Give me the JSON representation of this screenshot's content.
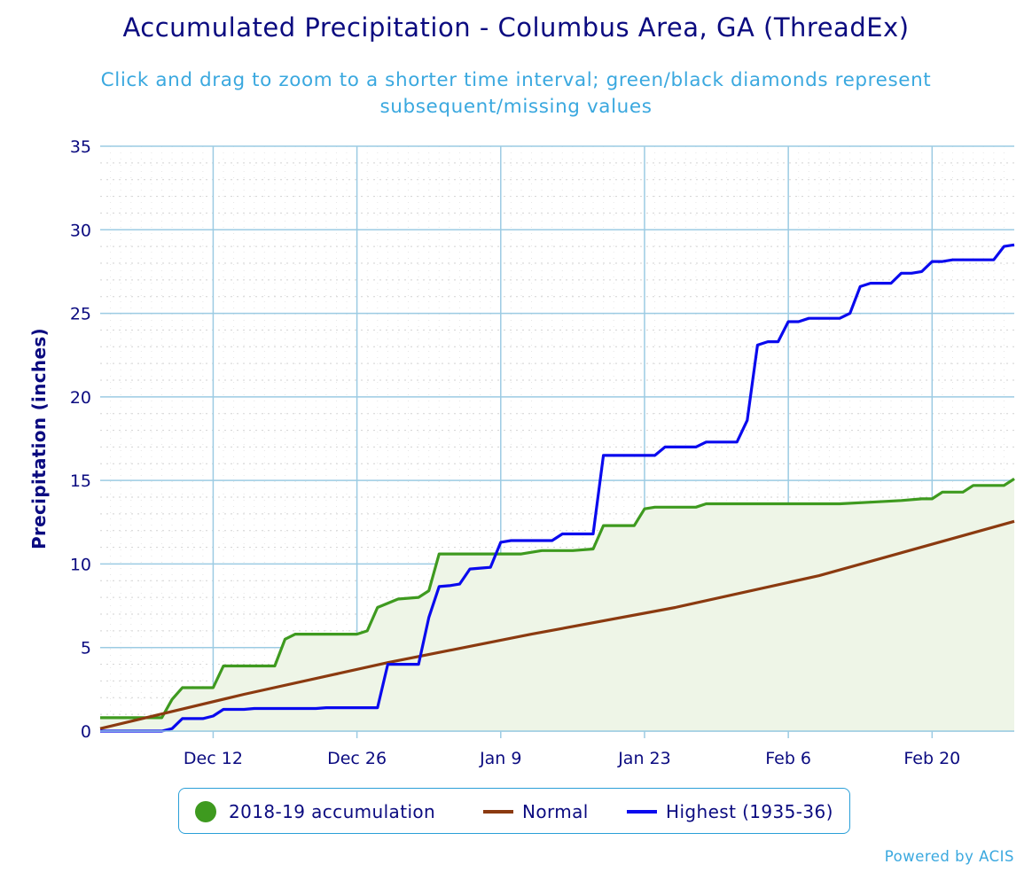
{
  "chart_data": {
    "type": "line",
    "title": "Accumulated Precipitation - Columbus Area, GA (ThreadEx)",
    "subtitle": "Click and drag to zoom to a shorter time interval; green/black diamonds represent subsequent/missing values",
    "ylabel": "Precipitation (inches)",
    "xlabel": "",
    "ylim": [
      0,
      35
    ],
    "yticks": [
      0,
      5,
      10,
      15,
      20,
      25,
      30,
      35
    ],
    "xlim": [
      "2018-12-01",
      "2019-02-28"
    ],
    "xticks": [
      {
        "date": "2018-12-12",
        "label": "Dec 12"
      },
      {
        "date": "2018-12-26",
        "label": "Dec 26"
      },
      {
        "date": "2019-01-09",
        "label": "Jan 9"
      },
      {
        "date": "2019-01-23",
        "label": "Jan 23"
      },
      {
        "date": "2019-02-06",
        "label": "Feb 6"
      },
      {
        "date": "2019-02-20",
        "label": "Feb 20"
      }
    ],
    "grid": true,
    "legend_position": "bottom",
    "series": [
      {
        "name": "2018-19 accumulation",
        "color": "#3e9a1f",
        "fill": "#eef5e7",
        "style": "area",
        "points": [
          [
            "2018-12-01",
            0.8
          ],
          [
            "2018-12-07",
            0.8
          ],
          [
            "2018-12-08",
            1.9
          ],
          [
            "2018-12-09",
            2.6
          ],
          [
            "2018-12-12",
            2.6
          ],
          [
            "2018-12-13",
            3.9
          ],
          [
            "2018-12-18",
            3.9
          ],
          [
            "2018-12-19",
            5.5
          ],
          [
            "2018-12-20",
            5.8
          ],
          [
            "2018-12-26",
            5.8
          ],
          [
            "2018-12-27",
            6.0
          ],
          [
            "2018-12-28",
            7.4
          ],
          [
            "2018-12-30",
            7.9
          ],
          [
            "2019-01-01",
            8.0
          ],
          [
            "2019-01-02",
            8.4
          ],
          [
            "2019-01-03",
            10.6
          ],
          [
            "2019-01-11",
            10.6
          ],
          [
            "2019-01-13",
            10.8
          ],
          [
            "2019-01-16",
            10.8
          ],
          [
            "2019-01-18",
            10.9
          ],
          [
            "2019-01-19",
            12.3
          ],
          [
            "2019-01-22",
            12.3
          ],
          [
            "2019-01-23",
            13.3
          ],
          [
            "2019-01-24",
            13.4
          ],
          [
            "2019-01-28",
            13.4
          ],
          [
            "2019-01-29",
            13.6
          ],
          [
            "2019-02-08",
            13.6
          ],
          [
            "2019-02-11",
            13.6
          ],
          [
            "2019-02-14",
            13.7
          ],
          [
            "2019-02-17",
            13.8
          ],
          [
            "2019-02-19",
            13.9
          ],
          [
            "2019-02-20",
            13.9
          ],
          [
            "2019-02-21",
            14.3
          ],
          [
            "2019-02-23",
            14.3
          ],
          [
            "2019-02-24",
            14.7
          ],
          [
            "2019-02-27",
            14.7
          ],
          [
            "2019-02-28",
            15.1
          ]
        ]
      },
      {
        "name": "Normal",
        "color": "#8b3a10",
        "style": "line",
        "points": [
          [
            "2018-12-01",
            0.15
          ],
          [
            "2018-12-15",
            2.2
          ],
          [
            "2018-12-29",
            4.1
          ],
          [
            "2019-01-12",
            5.8
          ],
          [
            "2019-01-26",
            7.4
          ],
          [
            "2019-02-09",
            9.3
          ],
          [
            "2019-02-28",
            12.55
          ]
        ]
      },
      {
        "name": "Highest (1935-36)",
        "color": "#0a0aee",
        "style": "line",
        "points": [
          [
            "2018-12-01",
            0.0
          ],
          [
            "2018-12-07",
            0.0
          ],
          [
            "2018-12-08",
            0.15
          ],
          [
            "2018-12-09",
            0.75
          ],
          [
            "2018-12-11",
            0.75
          ],
          [
            "2018-12-12",
            0.9
          ],
          [
            "2018-12-13",
            1.3
          ],
          [
            "2018-12-15",
            1.3
          ],
          [
            "2018-12-16",
            1.35
          ],
          [
            "2018-12-22",
            1.35
          ],
          [
            "2018-12-23",
            1.4
          ],
          [
            "2018-12-28",
            1.4
          ],
          [
            "2018-12-29",
            4.0
          ],
          [
            "2018-12-31",
            4.0
          ],
          [
            "2019-01-01",
            4.0
          ],
          [
            "2019-01-02",
            6.8
          ],
          [
            "2019-01-03",
            8.65
          ],
          [
            "2019-01-04",
            8.7
          ],
          [
            "2019-01-05",
            8.8
          ],
          [
            "2019-01-06",
            9.7
          ],
          [
            "2019-01-07",
            9.75
          ],
          [
            "2019-01-08",
            9.8
          ],
          [
            "2019-01-09",
            11.3
          ],
          [
            "2019-01-10",
            11.4
          ],
          [
            "2019-01-14",
            11.4
          ],
          [
            "2019-01-15",
            11.8
          ],
          [
            "2019-01-18",
            11.8
          ],
          [
            "2019-01-19",
            16.5
          ],
          [
            "2019-01-24",
            16.5
          ],
          [
            "2019-01-25",
            17.0
          ],
          [
            "2019-01-28",
            17.0
          ],
          [
            "2019-01-29",
            17.3
          ],
          [
            "2019-01-30",
            17.3
          ],
          [
            "2019-02-01",
            17.3
          ],
          [
            "2019-02-02",
            18.6
          ],
          [
            "2019-02-03",
            23.1
          ],
          [
            "2019-02-04",
            23.3
          ],
          [
            "2019-02-05",
            23.3
          ],
          [
            "2019-02-06",
            24.5
          ],
          [
            "2019-02-07",
            24.5
          ],
          [
            "2019-02-08",
            24.7
          ],
          [
            "2019-02-11",
            24.7
          ],
          [
            "2019-02-12",
            25.0
          ],
          [
            "2019-02-13",
            26.6
          ],
          [
            "2019-02-14",
            26.8
          ],
          [
            "2019-02-16",
            26.8
          ],
          [
            "2019-02-17",
            27.4
          ],
          [
            "2019-02-18",
            27.4
          ],
          [
            "2019-02-19",
            27.5
          ],
          [
            "2019-02-20",
            28.1
          ],
          [
            "2019-02-21",
            28.1
          ],
          [
            "2019-02-22",
            28.2
          ],
          [
            "2019-02-26",
            28.2
          ],
          [
            "2019-02-27",
            29.0
          ],
          [
            "2019-02-28",
            29.1
          ]
        ]
      }
    ]
  },
  "legend": {
    "items": [
      {
        "label": "2018-19 accumulation",
        "color": "#3e9a1f",
        "symbol": "dot"
      },
      {
        "label": "Normal",
        "color": "#8b3a10",
        "symbol": "line"
      },
      {
        "label": "Highest (1935-36)",
        "color": "#0a0aee",
        "symbol": "line"
      }
    ]
  },
  "credit": "Powered by ACIS"
}
